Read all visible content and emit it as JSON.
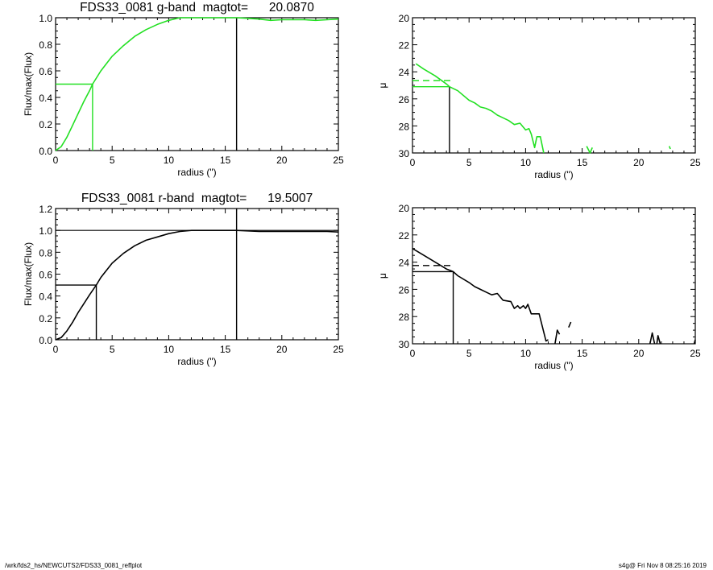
{
  "footer": {
    "path": "/wrk/fds2_hs/NEWCUTS2/FDS33_0081_reffplot",
    "stamp": "s4g@  Fri Nov  8 08:25:16 2019"
  },
  "colors": {
    "g": "#22e022",
    "r": "#000000"
  },
  "chart_data": [
    {
      "type": "line",
      "title": "FDS33_0081 g-band  magtot=      20.0870",
      "xlabel": "radius (\")",
      "ylabel": "Flux/max(Flux)",
      "xlim": [
        0,
        25
      ],
      "ylim": [
        0,
        1.0
      ],
      "xticks": [
        "0",
        "5",
        "10",
        "15",
        "20",
        "25"
      ],
      "yticks": [
        "0.0",
        "0.2",
        "0.4",
        "0.6",
        "0.8",
        "1.0"
      ],
      "ytick_values": [
        0,
        0.2,
        0.4,
        0.6,
        0.8,
        1.0
      ],
      "color": "#22e022",
      "series": [
        {
          "name": "growth-curve",
          "x": [
            0,
            0.5,
            1,
            1.5,
            2,
            2.5,
            3,
            3.27,
            4,
            5,
            6,
            7,
            8,
            9,
            10,
            11,
            12,
            13,
            14,
            15,
            16,
            17,
            18,
            19,
            20,
            21,
            22,
            23,
            24,
            25
          ],
          "y": [
            0,
            0.03,
            0.1,
            0.19,
            0.28,
            0.37,
            0.45,
            0.5,
            0.6,
            0.71,
            0.79,
            0.86,
            0.91,
            0.95,
            0.98,
            1.0,
            1.0,
            1.0,
            1.0,
            1.0,
            1.0,
            0.995,
            0.99,
            0.98,
            0.985,
            0.985,
            0.985,
            0.98,
            0.985,
            0.99
          ]
        }
      ],
      "half_light_radius": 3.27,
      "half_level": 0.5,
      "total_radius": 16,
      "max_level": null
    },
    {
      "type": "line",
      "title": "",
      "xlabel": "radius (\")",
      "ylabel": "μ",
      "xlim": [
        0,
        25
      ],
      "ylim": [
        20,
        30
      ],
      "y_inverted": true,
      "xticks": [
        "0",
        "5",
        "10",
        "15",
        "20",
        "25"
      ],
      "yticks": [
        "20",
        "22",
        "24",
        "26",
        "28",
        "30"
      ],
      "ytick_values": [
        20,
        22,
        24,
        26,
        28,
        30
      ],
      "color": "#22e022",
      "series": [
        {
          "name": "profile",
          "x": [
            0.3,
            1,
            2,
            3,
            3.27,
            4,
            5,
            5.5,
            6,
            6.5,
            7,
            7.5,
            8,
            8.5,
            9,
            9.5,
            10,
            10.3,
            10.5,
            10.8,
            11,
            11.3,
            11.6
          ],
          "y": [
            23.4,
            23.8,
            24.3,
            24.9,
            25.1,
            25.4,
            26.1,
            26.3,
            26.6,
            26.7,
            26.9,
            27.2,
            27.4,
            27.6,
            27.9,
            27.8,
            28.3,
            28.2,
            28.6,
            29.6,
            28.8,
            28.8,
            30.0
          ]
        },
        {
          "name": "profile-2",
          "x": [
            15.4,
            15.7,
            15.9
          ],
          "y": [
            29.5,
            30.0,
            29.6
          ]
        },
        {
          "name": "profile-3",
          "x": [
            22.7,
            22.8
          ],
          "y": [
            29.5,
            29.7
          ]
        }
      ],
      "mu_e": 25.1,
      "mu_mean_e": 24.65,
      "half_light_radius": 3.27
    },
    {
      "type": "line",
      "title": "FDS33_0081 r-band  magtot=      19.5007",
      "xlabel": "radius (\")",
      "ylabel": "Flux/max(Flux)",
      "xlim": [
        0,
        25
      ],
      "ylim": [
        0,
        1.2
      ],
      "xticks": [
        "0",
        "5",
        "10",
        "15",
        "20",
        "25"
      ],
      "yticks": [
        "0.0",
        "0.2",
        "0.4",
        "0.6",
        "0.8",
        "1.0",
        "1.2"
      ],
      "ytick_values": [
        0,
        0.2,
        0.4,
        0.6,
        0.8,
        1.0,
        1.2
      ],
      "color": "#000000",
      "series": [
        {
          "name": "growth-curve",
          "x": [
            0,
            0.5,
            1,
            1.5,
            2,
            2.5,
            3,
            3.6,
            4,
            5,
            6,
            7,
            8,
            9,
            10,
            11,
            12,
            13,
            14,
            15,
            16,
            17,
            18,
            19,
            20,
            21,
            22,
            23,
            24,
            25
          ],
          "y": [
            0,
            0.02,
            0.08,
            0.16,
            0.25,
            0.33,
            0.41,
            0.5,
            0.57,
            0.7,
            0.79,
            0.86,
            0.91,
            0.94,
            0.97,
            0.99,
            1.0,
            1.0,
            1.0,
            1.0,
            1.0,
            0.995,
            0.99,
            0.99,
            0.99,
            0.99,
            0.99,
            0.99,
            0.99,
            0.985
          ]
        }
      ],
      "half_light_radius": 3.6,
      "half_level": 0.5,
      "total_radius": 16,
      "max_level": 1.0
    },
    {
      "type": "line",
      "title": "",
      "xlabel": "radius (\")",
      "ylabel": "μ",
      "xlim": [
        0,
        25
      ],
      "ylim": [
        20,
        30
      ],
      "y_inverted": true,
      "xticks": [
        "0",
        "5",
        "10",
        "15",
        "20",
        "25"
      ],
      "yticks": [
        "20",
        "22",
        "24",
        "26",
        "28",
        "30"
      ],
      "ytick_values": [
        20,
        22,
        24,
        26,
        28,
        30
      ],
      "color": "#000000",
      "series": [
        {
          "name": "profile",
          "x": [
            0,
            1,
            2,
            3,
            3.6,
            4,
            5,
            5.5,
            6,
            6.5,
            7,
            7.5,
            8,
            8.7,
            9,
            9.3,
            9.5,
            9.8,
            10,
            10.2,
            10.5,
            11,
            11.2,
            11.8,
            12
          ],
          "y": [
            23.0,
            23.5,
            24.0,
            24.5,
            24.7,
            25.0,
            25.5,
            25.8,
            26.0,
            26.2,
            26.4,
            26.3,
            26.8,
            26.9,
            27.4,
            27.2,
            27.4,
            27.2,
            27.4,
            27.1,
            27.8,
            27.8,
            27.8,
            29.8,
            29.7
          ]
        },
        {
          "name": "profile-2",
          "x": [
            12.6,
            12.8,
            13
          ],
          "y": [
            30,
            29.0,
            29.3
          ]
        },
        {
          "name": "profile-3",
          "x": [
            13.8,
            14
          ],
          "y": [
            28.8,
            28.4
          ]
        },
        {
          "name": "profile-4",
          "x": [
            21,
            21.2,
            21.4
          ],
          "y": [
            30,
            29.2,
            30
          ]
        },
        {
          "name": "profile-5",
          "x": [
            21.6,
            21.7,
            21.9
          ],
          "y": [
            30,
            29.4,
            30
          ]
        },
        {
          "name": "profile-6",
          "x": [
            24.9,
            25
          ],
          "y": [
            30,
            29.7
          ]
        }
      ],
      "mu_e": 24.7,
      "mu_mean_e": 24.25,
      "half_light_radius": 3.6
    }
  ]
}
